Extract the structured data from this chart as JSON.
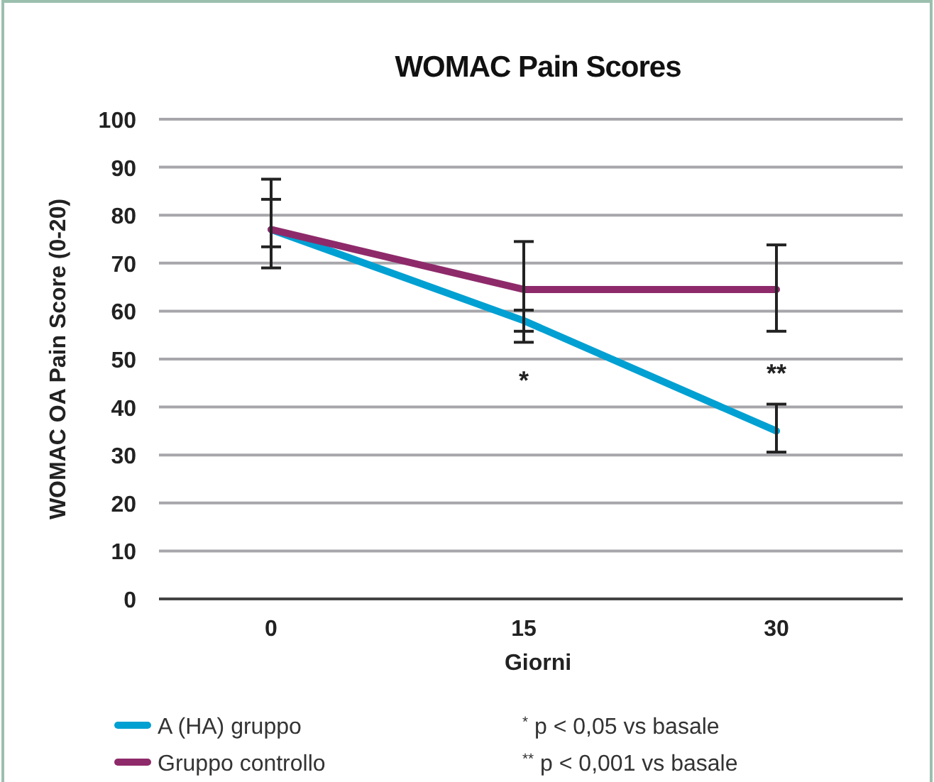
{
  "chart_data": {
    "type": "line",
    "title": "WOMAC Pain Scores",
    "xlabel": "Giorni",
    "ylabel": "WOMAC OA Pain Score (0-20)",
    "categories": [
      "0",
      "15",
      "30"
    ],
    "series": [
      {
        "name": "A (HA) gruppo",
        "color": "#00a0d2",
        "values": [
          77,
          58,
          35
        ],
        "errors": [
          [
            73.4,
            83.3
          ],
          [
            55.8,
            60.2
          ],
          [
            30.6,
            40.6
          ]
        ]
      },
      {
        "name": "Gruppo controllo",
        "color": "#8e2a6a",
        "values": [
          77,
          64.5,
          64.5
        ],
        "errors": [
          [
            69,
            87.5
          ],
          [
            53.5,
            74.5
          ],
          [
            55.8,
            73.8
          ]
        ]
      }
    ],
    "ylim": [
      0,
      100
    ],
    "yticks": [
      0,
      10,
      20,
      30,
      40,
      50,
      60,
      70,
      80,
      90,
      100
    ],
    "grid": "y",
    "legend": "bottom left",
    "marker": "none",
    "line_style": "solid",
    "annotations": [
      "*",
      "**",
      "$^{*}$ p < 0,05 vs basale",
      "$^{**}$ p < 0,001 vs basale"
    ]
  }
}
